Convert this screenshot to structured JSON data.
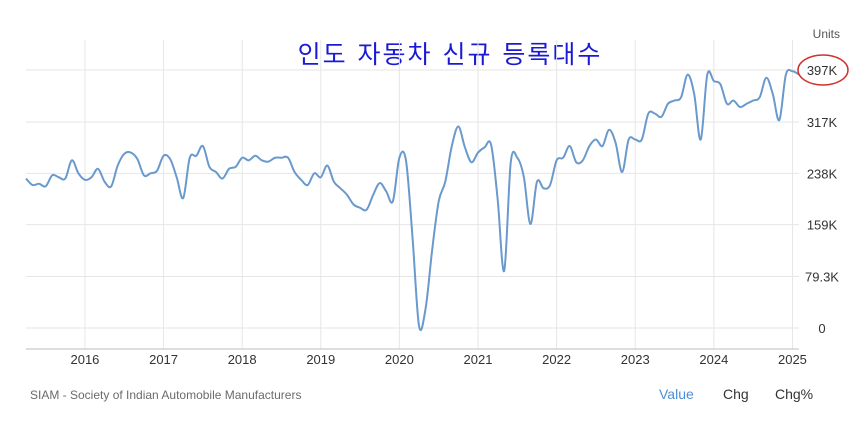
{
  "chart_data": {
    "type": "line",
    "title": "인도 자동차 신규 등록대수",
    "units_label": "Units",
    "y_ticks": [
      "0",
      "79.3K",
      "159K",
      "238K",
      "317K",
      "397K"
    ],
    "y_tick_values": [
      0,
      79300,
      159000,
      238000,
      317000,
      397000
    ],
    "ylim": [
      0,
      397000
    ],
    "x_ticks": [
      "2016",
      "2017",
      "2018",
      "2019",
      "2020",
      "2021",
      "2022",
      "2023",
      "2024",
      "2025"
    ],
    "x_tick_dates": [
      "2016-01",
      "2017-01",
      "2018-01",
      "2019-01",
      "2020-01",
      "2021-01",
      "2022-01",
      "2023-01",
      "2024-01",
      "2025-01"
    ],
    "xlim": [
      "2015-04",
      "2025-02"
    ],
    "highlight_label": "397K",
    "grid": true,
    "series": [
      {
        "color": "#6a99cc",
        "x": [
          "2015-04",
          "2015-05",
          "2015-06",
          "2015-07",
          "2015-08",
          "2015-09",
          "2015-10",
          "2015-11",
          "2015-12",
          "2016-01",
          "2016-02",
          "2016-03",
          "2016-04",
          "2016-05",
          "2016-06",
          "2016-07",
          "2016-08",
          "2016-09",
          "2016-10",
          "2016-11",
          "2016-12",
          "2017-01",
          "2017-02",
          "2017-03",
          "2017-04",
          "2017-05",
          "2017-06",
          "2017-07",
          "2017-08",
          "2017-09",
          "2017-10",
          "2017-11",
          "2017-12",
          "2018-01",
          "2018-02",
          "2018-03",
          "2018-04",
          "2018-05",
          "2018-06",
          "2018-07",
          "2018-08",
          "2018-09",
          "2018-10",
          "2018-11",
          "2018-12",
          "2019-01",
          "2019-02",
          "2019-03",
          "2019-04",
          "2019-05",
          "2019-06",
          "2019-07",
          "2019-08",
          "2019-09",
          "2019-10",
          "2019-11",
          "2019-12",
          "2020-01",
          "2020-02",
          "2020-03",
          "2020-04",
          "2020-05",
          "2020-06",
          "2020-07",
          "2020-08",
          "2020-09",
          "2020-10",
          "2020-11",
          "2020-12",
          "2021-01",
          "2021-02",
          "2021-03",
          "2021-04",
          "2021-05",
          "2021-06",
          "2021-07",
          "2021-08",
          "2021-09",
          "2021-10",
          "2021-11",
          "2021-12",
          "2022-01",
          "2022-02",
          "2022-03",
          "2022-04",
          "2022-05",
          "2022-06",
          "2022-07",
          "2022-08",
          "2022-09",
          "2022-10",
          "2022-11",
          "2022-12",
          "2023-01",
          "2023-02",
          "2023-03",
          "2023-04",
          "2023-05",
          "2023-06",
          "2023-07",
          "2023-08",
          "2023-09",
          "2023-10",
          "2023-11",
          "2023-12",
          "2024-01",
          "2024-02",
          "2024-03",
          "2024-04",
          "2024-05",
          "2024-06",
          "2024-07",
          "2024-08",
          "2024-09",
          "2024-10",
          "2024-11",
          "2024-12",
          "2025-01",
          "2025-02"
        ],
        "values": [
          230000,
          220000,
          222000,
          218000,
          235000,
          232000,
          230000,
          258000,
          238000,
          228000,
          232000,
          245000,
          225000,
          218000,
          250000,
          268000,
          270000,
          260000,
          235000,
          238000,
          242000,
          265000,
          260000,
          232000,
          200000,
          262000,
          265000,
          280000,
          248000,
          240000,
          230000,
          245000,
          248000,
          262000,
          258000,
          265000,
          258000,
          256000,
          262000,
          262000,
          262000,
          240000,
          228000,
          220000,
          238000,
          232000,
          250000,
          225000,
          215000,
          205000,
          190000,
          185000,
          182000,
          205000,
          223000,
          210000,
          195000,
          262000,
          258000,
          140000,
          3000,
          30000,
          120000,
          195000,
          225000,
          280000,
          310000,
          278000,
          255000,
          270000,
          278000,
          282000,
          198000,
          88000,
          255000,
          262000,
          232000,
          160000,
          225000,
          215000,
          220000,
          258000,
          262000,
          280000,
          255000,
          258000,
          280000,
          290000,
          280000,
          305000,
          285000,
          240000,
          290000,
          290000,
          290000,
          330000,
          330000,
          325000,
          345000,
          350000,
          355000,
          390000,
          360000,
          290000,
          390000,
          380000,
          375000,
          345000,
          350000,
          340000,
          345000,
          350000,
          355000,
          385000,
          360000,
          320000,
          390000,
          395000,
          390000
        ]
      }
    ]
  },
  "footer": {
    "source": "SIAM - Society of Indian Automobile Manufacturers",
    "tabs": [
      "Value",
      "Chg",
      "Chg%"
    ],
    "active_tab": "Value"
  },
  "colors": {
    "line": "#6a99cc",
    "title": "#1a1ad6",
    "highlight_ring": "#d0312d",
    "grid": "#e6e6e6",
    "axis_text": "#333333"
  }
}
